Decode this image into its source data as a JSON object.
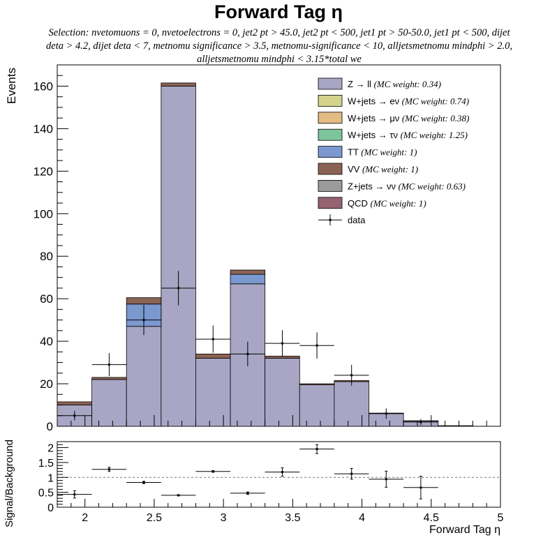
{
  "title": "Forward Tag η",
  "subtitle": "Selection: nvetomuons = 0, nvetoelectrons = 0, jet2 pt > 45.0, jet2 pt < 500, jet1 pt > 50-50.0, jet1 pt < 500, dijet deta > 4.2, dijet deta < 7, metnomu significance > 3.5, metnomu-significance < 10, alljetsmetnomu mindphi > 2.0, alljetsmetnomu mindphi < 3.15*total we",
  "chart_data": [
    {
      "type": "bar",
      "stacked": true,
      "ylabel": "Events",
      "xlim": [
        1.8,
        5.0
      ],
      "ylim": [
        0,
        170
      ],
      "yticks": [
        0,
        20,
        40,
        60,
        80,
        100,
        120,
        140,
        160
      ],
      "bin_edges": [
        1.8,
        2.05,
        2.3,
        2.55,
        2.8,
        3.05,
        3.3,
        3.55,
        3.8,
        4.05,
        4.3,
        4.55,
        4.8,
        5.0
      ],
      "legend_position": "top-right",
      "series": [
        {
          "name": "Z → ll",
          "note": "(MC weight: 0.34)",
          "color": "#a8a6c4",
          "values": [
            10.0,
            22.0,
            47.0,
            160.0,
            32.0,
            67.0,
            32.0,
            19.5,
            21.0,
            6.0,
            2.5,
            0.3,
            0
          ]
        },
        {
          "name": "W+jets → eν",
          "note": "(MC weight: 0.74)",
          "color": "#d4d38c",
          "values": [
            0,
            0,
            0,
            0,
            0,
            0,
            0,
            0,
            0,
            0,
            0,
            0,
            0
          ]
        },
        {
          "name": "W+jets → μν",
          "note": "(MC weight: 0.38)",
          "color": "#e3bc84",
          "values": [
            0,
            0,
            0,
            0,
            0,
            0,
            0,
            0,
            0,
            0,
            0,
            0,
            0
          ]
        },
        {
          "name": "W+jets → τν",
          "note": "(MC weight: 1.25)",
          "color": "#7fc59c",
          "values": [
            0,
            0,
            0,
            0,
            0,
            0,
            0,
            0,
            0,
            0,
            0,
            0,
            0
          ]
        },
        {
          "name": "TT",
          "note": "(MC weight: 1)",
          "color": "#7b98cf",
          "values": [
            0,
            0,
            10.5,
            0,
            0,
            4.5,
            0,
            0,
            0,
            0,
            0,
            0,
            0
          ]
        },
        {
          "name": "VV",
          "note": "(MC weight: 1)",
          "color": "#8b6354",
          "values": [
            1.5,
            1.0,
            3.0,
            1.5,
            2.0,
            2.0,
            1.0,
            0.5,
            0.5,
            0.2,
            0.1,
            0,
            0
          ]
        },
        {
          "name": "Z+jets → νν",
          "note": "(MC weight: 0.63)",
          "color": "#9b9b9b",
          "values": [
            0,
            0,
            0,
            0,
            0,
            0,
            0,
            0,
            0,
            0,
            0,
            0,
            0
          ]
        },
        {
          "name": "QCD",
          "note": "(MC weight: 1)",
          "color": "#956371",
          "values": [
            0,
            0,
            0,
            0,
            0,
            0,
            0,
            0,
            0,
            0,
            0,
            0,
            0
          ]
        }
      ],
      "data": {
        "name": "data",
        "x": [
          1.925,
          2.175,
          2.425,
          2.675,
          2.925,
          3.175,
          3.425,
          3.675,
          3.925,
          4.175,
          4.425
        ],
        "y": [
          5,
          29,
          50,
          65,
          41,
          34,
          39,
          38,
          24,
          6,
          2
        ],
        "yerr": [
          2.2,
          5.4,
          7.1,
          8.1,
          6.4,
          5.8,
          6.2,
          6.2,
          4.9,
          2.4,
          1.4
        ]
      }
    },
    {
      "type": "scatter",
      "ylabel": "Signal/Background",
      "xlabel": "Forward Tag η",
      "xlim": [
        1.8,
        5.0
      ],
      "ylim": [
        0,
        2.2
      ],
      "yticks": [
        0,
        0.5,
        1,
        1.5,
        2
      ],
      "yticklabels": [
        "0",
        "0.5",
        "1",
        "1.5",
        "2"
      ],
      "xticks": [
        2,
        2.5,
        3,
        3.5,
        4,
        4.5,
        5
      ],
      "xticklabels": [
        "2",
        "2.5",
        "3",
        "3.5",
        "4",
        "4.5",
        "5"
      ],
      "reference_line": 1,
      "x": [
        1.925,
        2.175,
        2.425,
        2.675,
        2.925,
        3.175,
        3.425,
        3.675,
        3.925,
        4.175,
        4.425
      ],
      "y": [
        0.43,
        1.27,
        0.83,
        0.4,
        1.2,
        0.47,
        1.18,
        1.95,
        1.12,
        0.94,
        0.66
      ],
      "yerr": [
        0.12,
        0.07,
        0.04,
        0.02,
        0.03,
        0.04,
        0.14,
        0.15,
        0.18,
        0.27,
        0.38
      ]
    }
  ]
}
